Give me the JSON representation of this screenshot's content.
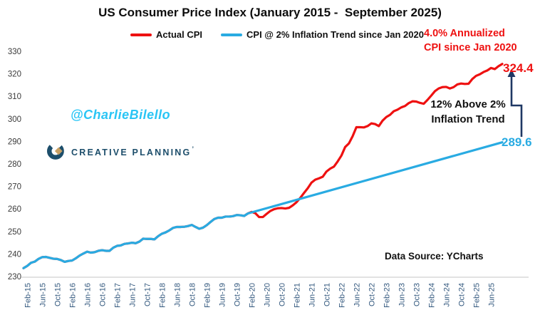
{
  "title": "US Consumer Price Index (January 2015 -  September 2025)",
  "legend": [
    {
      "label": "Actual CPI",
      "color": "#ee1111"
    },
    {
      "label": "CPI @ 2% Inflation Trend since Jan 2020",
      "color": "#29abe2"
    }
  ],
  "watermark": "@CharlieBilello",
  "logo": {
    "name": "CREATIVE PLANNING",
    "tm": "’"
  },
  "annotations": {
    "annualized": {
      "line1": "4.0% Annualized",
      "line2": "CPI since Jan 2020"
    },
    "above_trend": {
      "line1": "12% Above 2%",
      "line2": "Inflation Trend"
    },
    "actual_end_label": "324.4",
    "trend_end_label": "289.6",
    "data_source": "Data Source: YCharts"
  },
  "colors": {
    "actual": "#ee1111",
    "trend": "#29abe2",
    "arrow": "#1f3864",
    "axis_line": "#d9d9d9",
    "watermark": "#29c5f5",
    "logo_navy": "#1d4e6b",
    "logo_gold": "#c8a063",
    "annualized_text": "#ee1111"
  },
  "chart_data": {
    "type": "line",
    "title": "US Consumer Price Index (January 2015 -  September 2025)",
    "x_start_month": "Jan-15",
    "x_end_month": "Sep-25",
    "x_tick_labels": [
      "Feb-15",
      "Jun-15",
      "Oct-15",
      "Feb-16",
      "Jun-16",
      "Oct-16",
      "Feb-17",
      "Jun-17",
      "Oct-17",
      "Feb-18",
      "Jun-18",
      "Oct-18",
      "Feb-19",
      "Jun-19",
      "Oct-19",
      "Feb-20",
      "Jun-20",
      "Oct-20",
      "Feb-21",
      "Jun-21",
      "Oct-21",
      "Feb-22",
      "Jun-22",
      "Oct-22",
      "Feb-23",
      "Jun-23",
      "Oct-23",
      "Feb-24",
      "Jun-24",
      "Oct-24",
      "Feb-25",
      "Jun-25"
    ],
    "x_tick_first_month_index": 1,
    "x_tick_step_months": 4,
    "y_ticks": [
      230,
      240,
      250,
      260,
      270,
      280,
      290,
      300,
      310,
      320,
      330
    ],
    "ylim": [
      230,
      330
    ],
    "grid": false,
    "legend_position": "top",
    "series": [
      {
        "name": "Actual CPI",
        "color": "#ee1111",
        "end_value": 324.4,
        "monthly_values": [
          233.7,
          234.7,
          236.1,
          236.6,
          237.8,
          238.6,
          238.7,
          238.3,
          237.9,
          237.8,
          237.3,
          236.5,
          236.9,
          237.1,
          238.1,
          239.3,
          240.2,
          241.0,
          240.6,
          240.8,
          241.4,
          241.7,
          241.4,
          241.4,
          242.8,
          243.6,
          243.8,
          244.5,
          244.7,
          245.0,
          244.8,
          245.5,
          246.8,
          246.7,
          246.7,
          246.5,
          247.9,
          249.0,
          249.6,
          250.5,
          251.6,
          252.0,
          252.0,
          252.1,
          252.4,
          252.9,
          252.0,
          251.2,
          251.7,
          252.8,
          254.2,
          255.5,
          256.1,
          256.1,
          256.6,
          256.6,
          256.8,
          257.3,
          257.2,
          256.9,
          258.0,
          258.7,
          258.1,
          256.4,
          256.4,
          257.8,
          259.1,
          259.9,
          260.3,
          260.4,
          260.2,
          260.5,
          261.6,
          263.0,
          264.9,
          267.1,
          269.2,
          271.7,
          273.0,
          273.6,
          274.3,
          276.6,
          277.9,
          278.8,
          281.1,
          283.7,
          287.5,
          289.1,
          292.3,
          296.3,
          296.3,
          296.2,
          296.8,
          298.0,
          297.7,
          296.8,
          299.2,
          300.8,
          301.8,
          303.4,
          304.1,
          305.1,
          305.7,
          307.0,
          307.8,
          307.7,
          307.1,
          306.7,
          308.4,
          310.3,
          312.3,
          313.5,
          314.1,
          314.2,
          313.5,
          314.1,
          315.3,
          315.7,
          315.5,
          315.6,
          317.7,
          319.1,
          319.8,
          320.8,
          321.5,
          322.6,
          322.1,
          323.4,
          324.4
        ]
      },
      {
        "name": "CPI @ 2% Inflation Trend since Jan 2020",
        "color": "#29abe2",
        "note": "equals Actual CPI through Jan-20, then straight 2% annual trend to Sep-25",
        "trend_start_index": 60,
        "trend_start_value": 258.0,
        "trend_end_value": 289.6,
        "end_value": 289.6
      }
    ]
  }
}
